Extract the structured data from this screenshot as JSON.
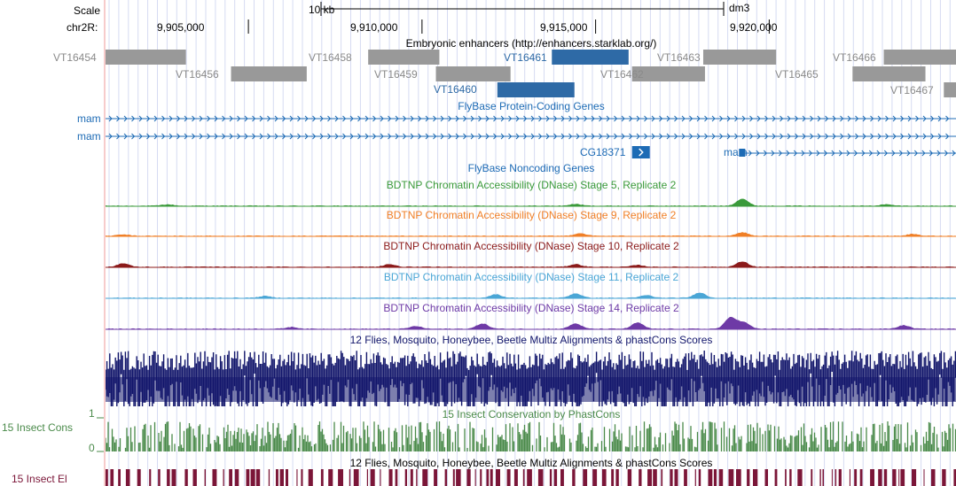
{
  "browser": {
    "assembly": "dm3",
    "scale_label": "Scale",
    "scale_bar_label": "10 kb",
    "chrom_label": "chr2R:",
    "ruler_ticks": [
      {
        "label": "9,905,000",
        "pos": 9905000
      },
      {
        "label": "9,910,000",
        "pos": 9910000
      },
      {
        "label": "9,915,000",
        "pos": 9915000
      },
      {
        "label": "9,920,000",
        "pos": 9920000
      }
    ],
    "view_start": 9900885,
    "view_end": 9925380
  },
  "colors": {
    "sidebar_bg": "#ffffff",
    "left_rule": "#f7cccc",
    "grid_line": "#d6dbf2",
    "enhancer_gray": "#999999",
    "enhancer_blue": "#2e6aa6",
    "gene_blue": "#1d6bb5",
    "stage5": "#3a9a3a",
    "stage9": "#f07f26",
    "stage10": "#8b1a1a",
    "stage11": "#4aa6d6",
    "stage14": "#6e3aa6",
    "multiz": "#12166b",
    "phastcons": "#4a8a4a",
    "elements": "#7b1638"
  },
  "tracks": {
    "enhancers": {
      "title": "Embryonic enhancers (http://enhancers.starklab.org/)",
      "items": [
        {
          "name": "VT16454",
          "start": 9900885,
          "end": 9903200,
          "row": 0,
          "highlight": false
        },
        {
          "name": "VT16456",
          "start": 9904500,
          "end": 9906680,
          "row": 1,
          "highlight": false
        },
        {
          "name": "VT16458",
          "start": 9908450,
          "end": 9910500,
          "row": 0,
          "highlight": false
        },
        {
          "name": "VT16459",
          "start": 9910400,
          "end": 9912550,
          "row": 1,
          "highlight": false
        },
        {
          "name": "VT16460",
          "start": 9912170,
          "end": 9914390,
          "row": 2,
          "highlight": true
        },
        {
          "name": "VT16461",
          "start": 9913740,
          "end": 9915950,
          "row": 0,
          "highlight": true
        },
        {
          "name": "VT16462",
          "start": 9916050,
          "end": 9918150,
          "row": 1,
          "highlight": false
        },
        {
          "name": "VT16463",
          "start": 9918100,
          "end": 9920200,
          "row": 0,
          "highlight": false
        },
        {
          "name": "VT16465",
          "start": 9922400,
          "end": 9924500,
          "row": 1,
          "highlight": false
        },
        {
          "name": "VT16466",
          "start": 9923300,
          "end": 9925400,
          "row": 0,
          "highlight": false
        },
        {
          "name": "VT16467",
          "start": 9925030,
          "end": 9925380,
          "row": 2,
          "highlight": false
        }
      ]
    },
    "flybase_coding": {
      "title": "FlyBase Protein-Coding Genes",
      "transcripts": [
        {
          "name": "mam",
          "start": 9900885,
          "end": 9925380,
          "strand": "+",
          "label_side": "left"
        },
        {
          "name": "mam",
          "start": 9900885,
          "end": 9925380,
          "strand": "+",
          "label_side": "left"
        },
        {
          "name": "CG18371",
          "start": 9916050,
          "end": 9916500,
          "strand": "+",
          "label_side": "inline"
        },
        {
          "name": "mam",
          "start": 9919130,
          "end": 9925380,
          "strand": "+",
          "label_side": "inline"
        }
      ]
    },
    "flybase_noncoding": {
      "title": "FlyBase Noncoding Genes"
    },
    "dnase": [
      {
        "title": "BDTNP Chromatin Accessibility (DNase) Stage 5, Replicate 2",
        "color_key": "stage5"
      },
      {
        "title": "BDTNP Chromatin Accessibility (DNase) Stage 9, Replicate 2",
        "color_key": "stage9"
      },
      {
        "title": "BDTNP Chromatin Accessibility (DNase) Stage 10, Replicate 2",
        "color_key": "stage10"
      },
      {
        "title": "BDTNP Chromatin Accessibility (DNase) Stage 11, Replicate 2",
        "color_key": "stage11"
      },
      {
        "title": "BDTNP Chromatin Accessibility (DNase) Stage 14, Replicate 2",
        "color_key": "stage14"
      }
    ],
    "multiz": {
      "title": "12 Flies, Mosquito, Honeybee, Beetle Multiz Alignments & phastCons Scores"
    },
    "phastcons": {
      "title": "15 Insect Conservation by PhastCons",
      "side_label": "15 Insect Cons",
      "axis_max": "1",
      "axis_min": "0"
    },
    "elements": {
      "title": "12 Flies, Mosquito, Honeybee, Beetle Multiz Alignments & phastCons Scores",
      "side_label": "15 Insect El"
    }
  }
}
